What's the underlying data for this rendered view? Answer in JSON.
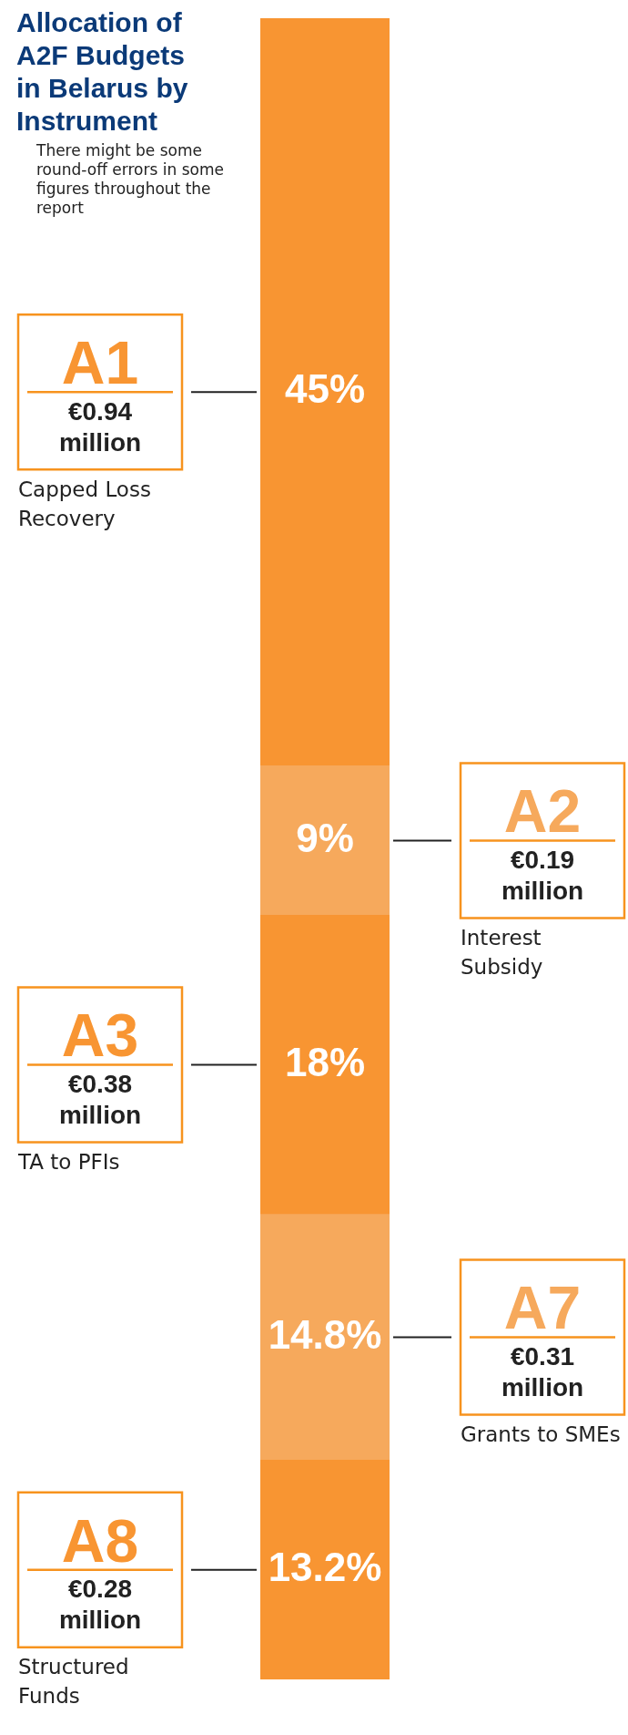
{
  "chart_data": {
    "type": "bar",
    "title": "Allocation of A2F Budgets in Belarus by Instrument",
    "categories": [
      null
    ],
    "stacked": true,
    "tick_labels": false,
    "legend": false,
    "series": [
      {
        "name": "A8",
        "color": "#f89532",
        "values": [
          13.2
        ],
        "value_labels": [
          "13.2%"
        ]
      },
      {
        "name": "A7",
        "color": "#f6a95c",
        "values": [
          14.8
        ],
        "value_labels": [
          "14.8%"
        ]
      },
      {
        "name": "A3",
        "color": "#f89532",
        "values": [
          18
        ],
        "value_labels": [
          "18%"
        ]
      },
      {
        "name": "A2",
        "color": "#f6a95c",
        "values": [
          9
        ],
        "value_labels": [
          "9%"
        ]
      },
      {
        "name": "A1",
        "color": "#f89532",
        "values": [
          45
        ],
        "value_labels": [
          "45%"
        ]
      }
    ],
    "annotations": [
      "There might be some round-off errors in some figures throughout the report",
      "€0.94 million",
      "Capped Loss Recovery",
      "€0.19 million",
      "Interest Subsidy",
      "€0.38 million",
      "TA to PFIs",
      "€0.31 million",
      "Grants to SMEs",
      "€0.28 million",
      "Structured Funds"
    ]
  }
}
